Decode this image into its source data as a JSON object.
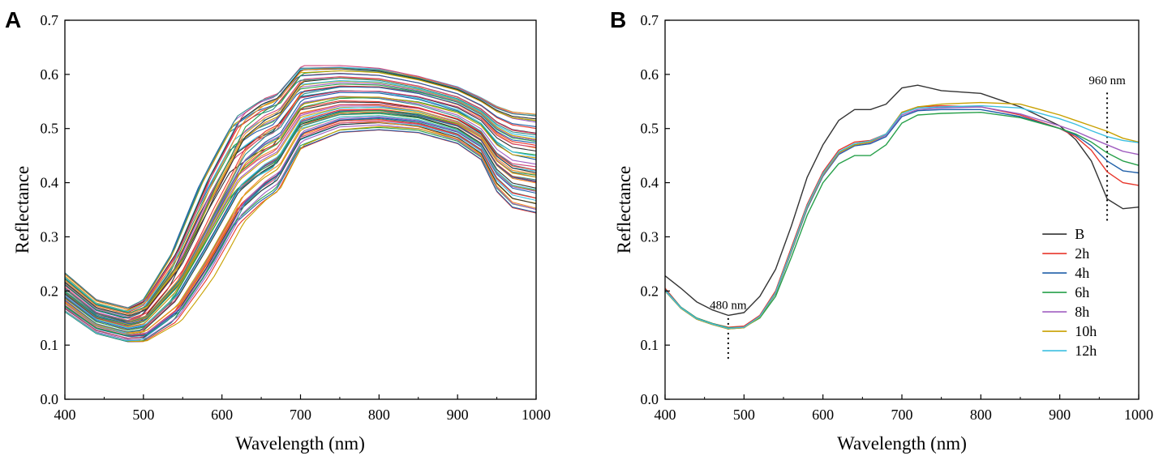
{
  "chart_data": [
    {
      "panel": "A",
      "type": "line",
      "title": "",
      "xlabel": "Wavelength (nm)",
      "ylabel": "Reflectance",
      "xlim": [
        400,
        1000
      ],
      "ylim": [
        0.0,
        0.7
      ],
      "xticks": [
        400,
        500,
        600,
        700,
        800,
        900,
        1000
      ],
      "yticks": [
        0.0,
        0.1,
        0.2,
        0.3,
        0.4,
        0.5,
        0.6,
        0.7
      ],
      "grid": false,
      "legend": "none",
      "note": "About 60 overlapping spectra; envelope of all curves",
      "x": [
        400,
        440,
        480,
        500,
        540,
        580,
        620,
        650,
        670,
        700,
        750,
        800,
        850,
        900,
        930,
        950,
        970,
        1000
      ],
      "envelope": {
        "lower": [
          0.16,
          0.12,
          0.105,
          0.105,
          0.14,
          0.22,
          0.32,
          0.36,
          0.38,
          0.46,
          0.49,
          0.495,
          0.49,
          0.47,
          0.44,
          0.38,
          0.35,
          0.34
        ],
        "upper": [
          0.235,
          0.185,
          0.17,
          0.185,
          0.28,
          0.42,
          0.53,
          0.56,
          0.57,
          0.62,
          0.62,
          0.615,
          0.6,
          0.58,
          0.56,
          0.545,
          0.535,
          0.53
        ]
      }
    },
    {
      "panel": "B",
      "type": "line",
      "title": "",
      "xlabel": "Wavelength (nm)",
      "ylabel": "Reflectance",
      "xlim": [
        400,
        1000
      ],
      "ylim": [
        0.0,
        0.7
      ],
      "xticks": [
        400,
        500,
        600,
        700,
        800,
        900,
        1000
      ],
      "yticks": [
        0.0,
        0.1,
        0.2,
        0.3,
        0.4,
        0.5,
        0.6,
        0.7
      ],
      "grid": false,
      "legend": "bottom-right",
      "x": [
        400,
        420,
        440,
        460,
        480,
        500,
        520,
        540,
        560,
        580,
        600,
        620,
        640,
        660,
        680,
        700,
        720,
        750,
        800,
        850,
        900,
        920,
        940,
        960,
        980,
        1000
      ],
      "series": [
        {
          "name": "B",
          "color": "#333333",
          "values": [
            0.228,
            0.205,
            0.18,
            0.165,
            0.155,
            0.16,
            0.19,
            0.24,
            0.32,
            0.41,
            0.47,
            0.515,
            0.535,
            0.535,
            0.545,
            0.575,
            0.58,
            0.57,
            0.565,
            0.54,
            0.505,
            0.48,
            0.44,
            0.37,
            0.352,
            0.355
          ]
        },
        {
          "name": "2h",
          "color": "#e8372c",
          "values": [
            0.205,
            0.17,
            0.15,
            0.14,
            0.133,
            0.135,
            0.155,
            0.2,
            0.28,
            0.36,
            0.42,
            0.46,
            0.475,
            0.478,
            0.49,
            0.53,
            0.54,
            0.542,
            0.54,
            0.525,
            0.5,
            0.485,
            0.46,
            0.42,
            0.4,
            0.395
          ]
        },
        {
          "name": "4h",
          "color": "#1f5fa8",
          "values": [
            0.2,
            0.168,
            0.148,
            0.138,
            0.13,
            0.132,
            0.152,
            0.195,
            0.272,
            0.352,
            0.412,
            0.452,
            0.468,
            0.472,
            0.485,
            0.522,
            0.533,
            0.535,
            0.535,
            0.522,
            0.5,
            0.488,
            0.468,
            0.44,
            0.422,
            0.418
          ]
        },
        {
          "name": "6h",
          "color": "#27a04a",
          "values": [
            0.203,
            0.17,
            0.15,
            0.14,
            0.132,
            0.133,
            0.15,
            0.19,
            0.262,
            0.34,
            0.4,
            0.435,
            0.45,
            0.45,
            0.47,
            0.51,
            0.525,
            0.528,
            0.53,
            0.52,
            0.5,
            0.49,
            0.475,
            0.455,
            0.44,
            0.432
          ]
        },
        {
          "name": "8h",
          "color": "#a05ec0",
          "values": [
            0.202,
            0.169,
            0.149,
            0.139,
            0.131,
            0.133,
            0.153,
            0.196,
            0.274,
            0.354,
            0.414,
            0.454,
            0.47,
            0.474,
            0.488,
            0.525,
            0.535,
            0.538,
            0.54,
            0.527,
            0.505,
            0.495,
            0.482,
            0.47,
            0.458,
            0.452
          ]
        },
        {
          "name": "10h",
          "color": "#c8a000",
          "values": [
            0.2,
            0.168,
            0.148,
            0.138,
            0.13,
            0.132,
            0.152,
            0.196,
            0.274,
            0.355,
            0.415,
            0.455,
            0.47,
            0.475,
            0.49,
            0.53,
            0.54,
            0.545,
            0.548,
            0.545,
            0.525,
            0.515,
            0.505,
            0.495,
            0.482,
            0.475
          ]
        },
        {
          "name": "12h",
          "color": "#3cbfe0",
          "values": [
            0.201,
            0.169,
            0.149,
            0.139,
            0.131,
            0.133,
            0.153,
            0.197,
            0.276,
            0.357,
            0.417,
            0.457,
            0.472,
            0.477,
            0.49,
            0.528,
            0.538,
            0.54,
            0.542,
            0.538,
            0.518,
            0.508,
            0.496,
            0.485,
            0.478,
            0.474
          ]
        }
      ],
      "annotations": [
        {
          "label": "480 nm",
          "x": 480,
          "y_from": 0.075,
          "y_to": 0.155
        },
        {
          "label": "960 nm",
          "x": 960,
          "y_from": 0.33,
          "y_to": 0.57
        }
      ]
    }
  ],
  "panels": [
    {
      "letter": "A"
    },
    {
      "letter": "B"
    }
  ]
}
